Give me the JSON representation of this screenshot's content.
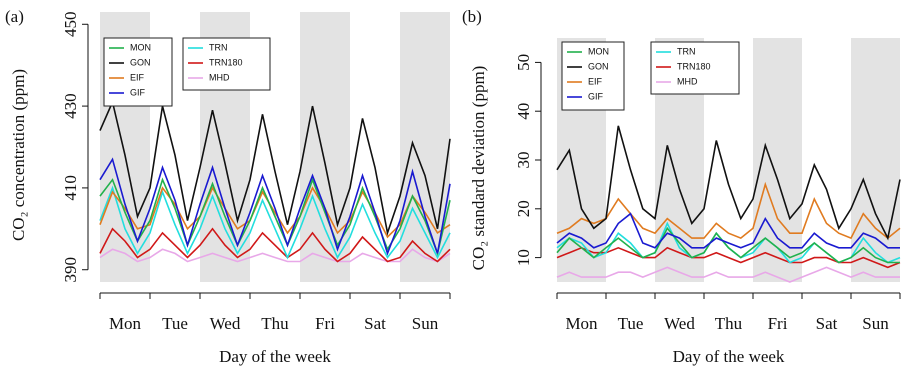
{
  "chart_data": [
    {
      "type": "line",
      "label": "(a)",
      "xlabel": "Day of the week",
      "ylabel": "CO₂ concentration (ppm)",
      "categories": [
        "Mon",
        "Tue",
        "Wed",
        "Thu",
        "Fri",
        "Sat",
        "Sun"
      ],
      "x": [
        0,
        0.25,
        0.5,
        0.75,
        1,
        1.25,
        1.5,
        1.75,
        2,
        2.25,
        2.5,
        2.75,
        3,
        3.25,
        3.5,
        3.75,
        4,
        4.25,
        4.5,
        4.75,
        5,
        5.25,
        5.5,
        5.75,
        6,
        6.25,
        6.5,
        6.75,
        7
      ],
      "xlim": [
        0,
        7
      ],
      "ylim": [
        387,
        453
      ],
      "yticks": [
        390,
        410,
        430,
        450
      ],
      "series": [
        {
          "name": "MON",
          "color": "#22b14c",
          "values": [
            408,
            412,
            404,
            397,
            402,
            412,
            405,
            396,
            403,
            411,
            403,
            396,
            402,
            410,
            403,
            396,
            403,
            412,
            404,
            396,
            401,
            410,
            403,
            395,
            400,
            408,
            402,
            394,
            407
          ]
        },
        {
          "name": "GON",
          "color": "#111111",
          "values": [
            424,
            431,
            418,
            403,
            410,
            430,
            418,
            402,
            415,
            429,
            416,
            402,
            412,
            428,
            414,
            401,
            414,
            430,
            416,
            401,
            410,
            427,
            415,
            399,
            408,
            421,
            413,
            400,
            422
          ]
        },
        {
          "name": "EIF",
          "color": "#e07b20",
          "values": [
            401,
            409,
            405,
            400,
            401,
            410,
            406,
            400,
            403,
            410,
            405,
            400,
            402,
            409,
            404,
            399,
            403,
            410,
            405,
            399,
            402,
            409,
            404,
            398,
            401,
            408,
            404,
            399,
            401
          ]
        },
        {
          "name": "GIF",
          "color": "#1a1ad0",
          "values": [
            412,
            417,
            406,
            397,
            405,
            415,
            407,
            396,
            406,
            415,
            405,
            396,
            404,
            413,
            405,
            396,
            405,
            413,
            405,
            395,
            403,
            413,
            404,
            394,
            402,
            414,
            403,
            394,
            411
          ]
        },
        {
          "name": "TRN",
          "color": "#22dede",
          "values": [
            402,
            410,
            400,
            394,
            399,
            409,
            401,
            394,
            400,
            408,
            400,
            394,
            399,
            407,
            400,
            393,
            400,
            408,
            400,
            393,
            398,
            406,
            399,
            393,
            397,
            405,
            399,
            393,
            399
          ]
        },
        {
          "name": "TRN180",
          "color": "#d01818",
          "values": [
            394,
            400,
            397,
            393,
            395,
            399,
            396,
            393,
            396,
            400,
            396,
            393,
            395,
            399,
            396,
            393,
            395,
            399,
            395,
            392,
            394,
            398,
            395,
            392,
            393,
            397,
            394,
            392,
            395
          ]
        },
        {
          "name": "MHD",
          "color": "#e8a8e8",
          "values": [
            393,
            395,
            394,
            392,
            393,
            395,
            394,
            392,
            393,
            394,
            393,
            392,
            393,
            394,
            393,
            392,
            392,
            394,
            393,
            392,
            392,
            394,
            393,
            392,
            392,
            395,
            393,
            392,
            394
          ]
        }
      ]
    },
    {
      "type": "line",
      "label": "(b)",
      "xlabel": "Day of the week",
      "ylabel": "CO₂ standard deviation (ppm)",
      "categories": [
        "Mon",
        "Tue",
        "Wed",
        "Thu",
        "Fri",
        "Sat",
        "Sun"
      ],
      "x": [
        0,
        0.25,
        0.5,
        0.75,
        1,
        1.25,
        1.5,
        1.75,
        2,
        2.25,
        2.5,
        2.75,
        3,
        3.25,
        3.5,
        3.75,
        4,
        4.25,
        4.5,
        4.75,
        5,
        5.25,
        5.5,
        5.75,
        6,
        6.25,
        6.5,
        6.75,
        7
      ],
      "xlim": [
        0,
        7
      ],
      "ylim": [
        5,
        55
      ],
      "yticks": [
        10,
        20,
        30,
        40,
        50
      ],
      "series": [
        {
          "name": "MON",
          "color": "#22b14c",
          "values": [
            11,
            14,
            12,
            10,
            12,
            14,
            12,
            10,
            11,
            16,
            13,
            10,
            11,
            15,
            12,
            10,
            12,
            14,
            12,
            10,
            11,
            13,
            11,
            9,
            10,
            12,
            10,
            9,
            9
          ]
        },
        {
          "name": "GON",
          "color": "#111111",
          "values": [
            28,
            32,
            20,
            16,
            18,
            37,
            28,
            20,
            18,
            33,
            24,
            17,
            20,
            34,
            25,
            18,
            22,
            33,
            26,
            18,
            21,
            29,
            24,
            16,
            20,
            26,
            19,
            14,
            26
          ]
        },
        {
          "name": "EIF",
          "color": "#e07b20",
          "values": [
            15,
            16,
            18,
            17,
            18,
            22,
            19,
            16,
            15,
            18,
            16,
            14,
            14,
            17,
            15,
            14,
            16,
            25,
            18,
            15,
            15,
            22,
            17,
            15,
            14,
            19,
            16,
            14,
            16
          ]
        },
        {
          "name": "GIF",
          "color": "#1a1ad0",
          "values": [
            13,
            15,
            14,
            12,
            13,
            17,
            19,
            13,
            12,
            15,
            14,
            12,
            12,
            14,
            13,
            12,
            13,
            18,
            14,
            12,
            12,
            15,
            13,
            12,
            12,
            15,
            14,
            12,
            12
          ]
        },
        {
          "name": "TRN",
          "color": "#22dede",
          "values": [
            12,
            14,
            13,
            10,
            11,
            15,
            13,
            10,
            11,
            17,
            12,
            10,
            11,
            15,
            12,
            10,
            11,
            14,
            12,
            9,
            10,
            13,
            11,
            9,
            10,
            14,
            11,
            9,
            10
          ]
        },
        {
          "name": "TRN180",
          "color": "#d01818",
          "values": [
            10,
            11,
            12,
            11,
            11,
            12,
            11,
            10,
            10,
            12,
            11,
            10,
            10,
            11,
            10,
            9,
            10,
            11,
            10,
            9,
            9,
            10,
            10,
            9,
            9,
            10,
            9,
            8,
            9
          ]
        },
        {
          "name": "MHD",
          "color": "#e8a8e8",
          "values": [
            6,
            7,
            6,
            6,
            6,
            7,
            7,
            6,
            7,
            8,
            7,
            6,
            6,
            7,
            6,
            6,
            6,
            7,
            6,
            5,
            6,
            7,
            8,
            7,
            6,
            7,
            6,
            6,
            6
          ]
        }
      ]
    }
  ]
}
